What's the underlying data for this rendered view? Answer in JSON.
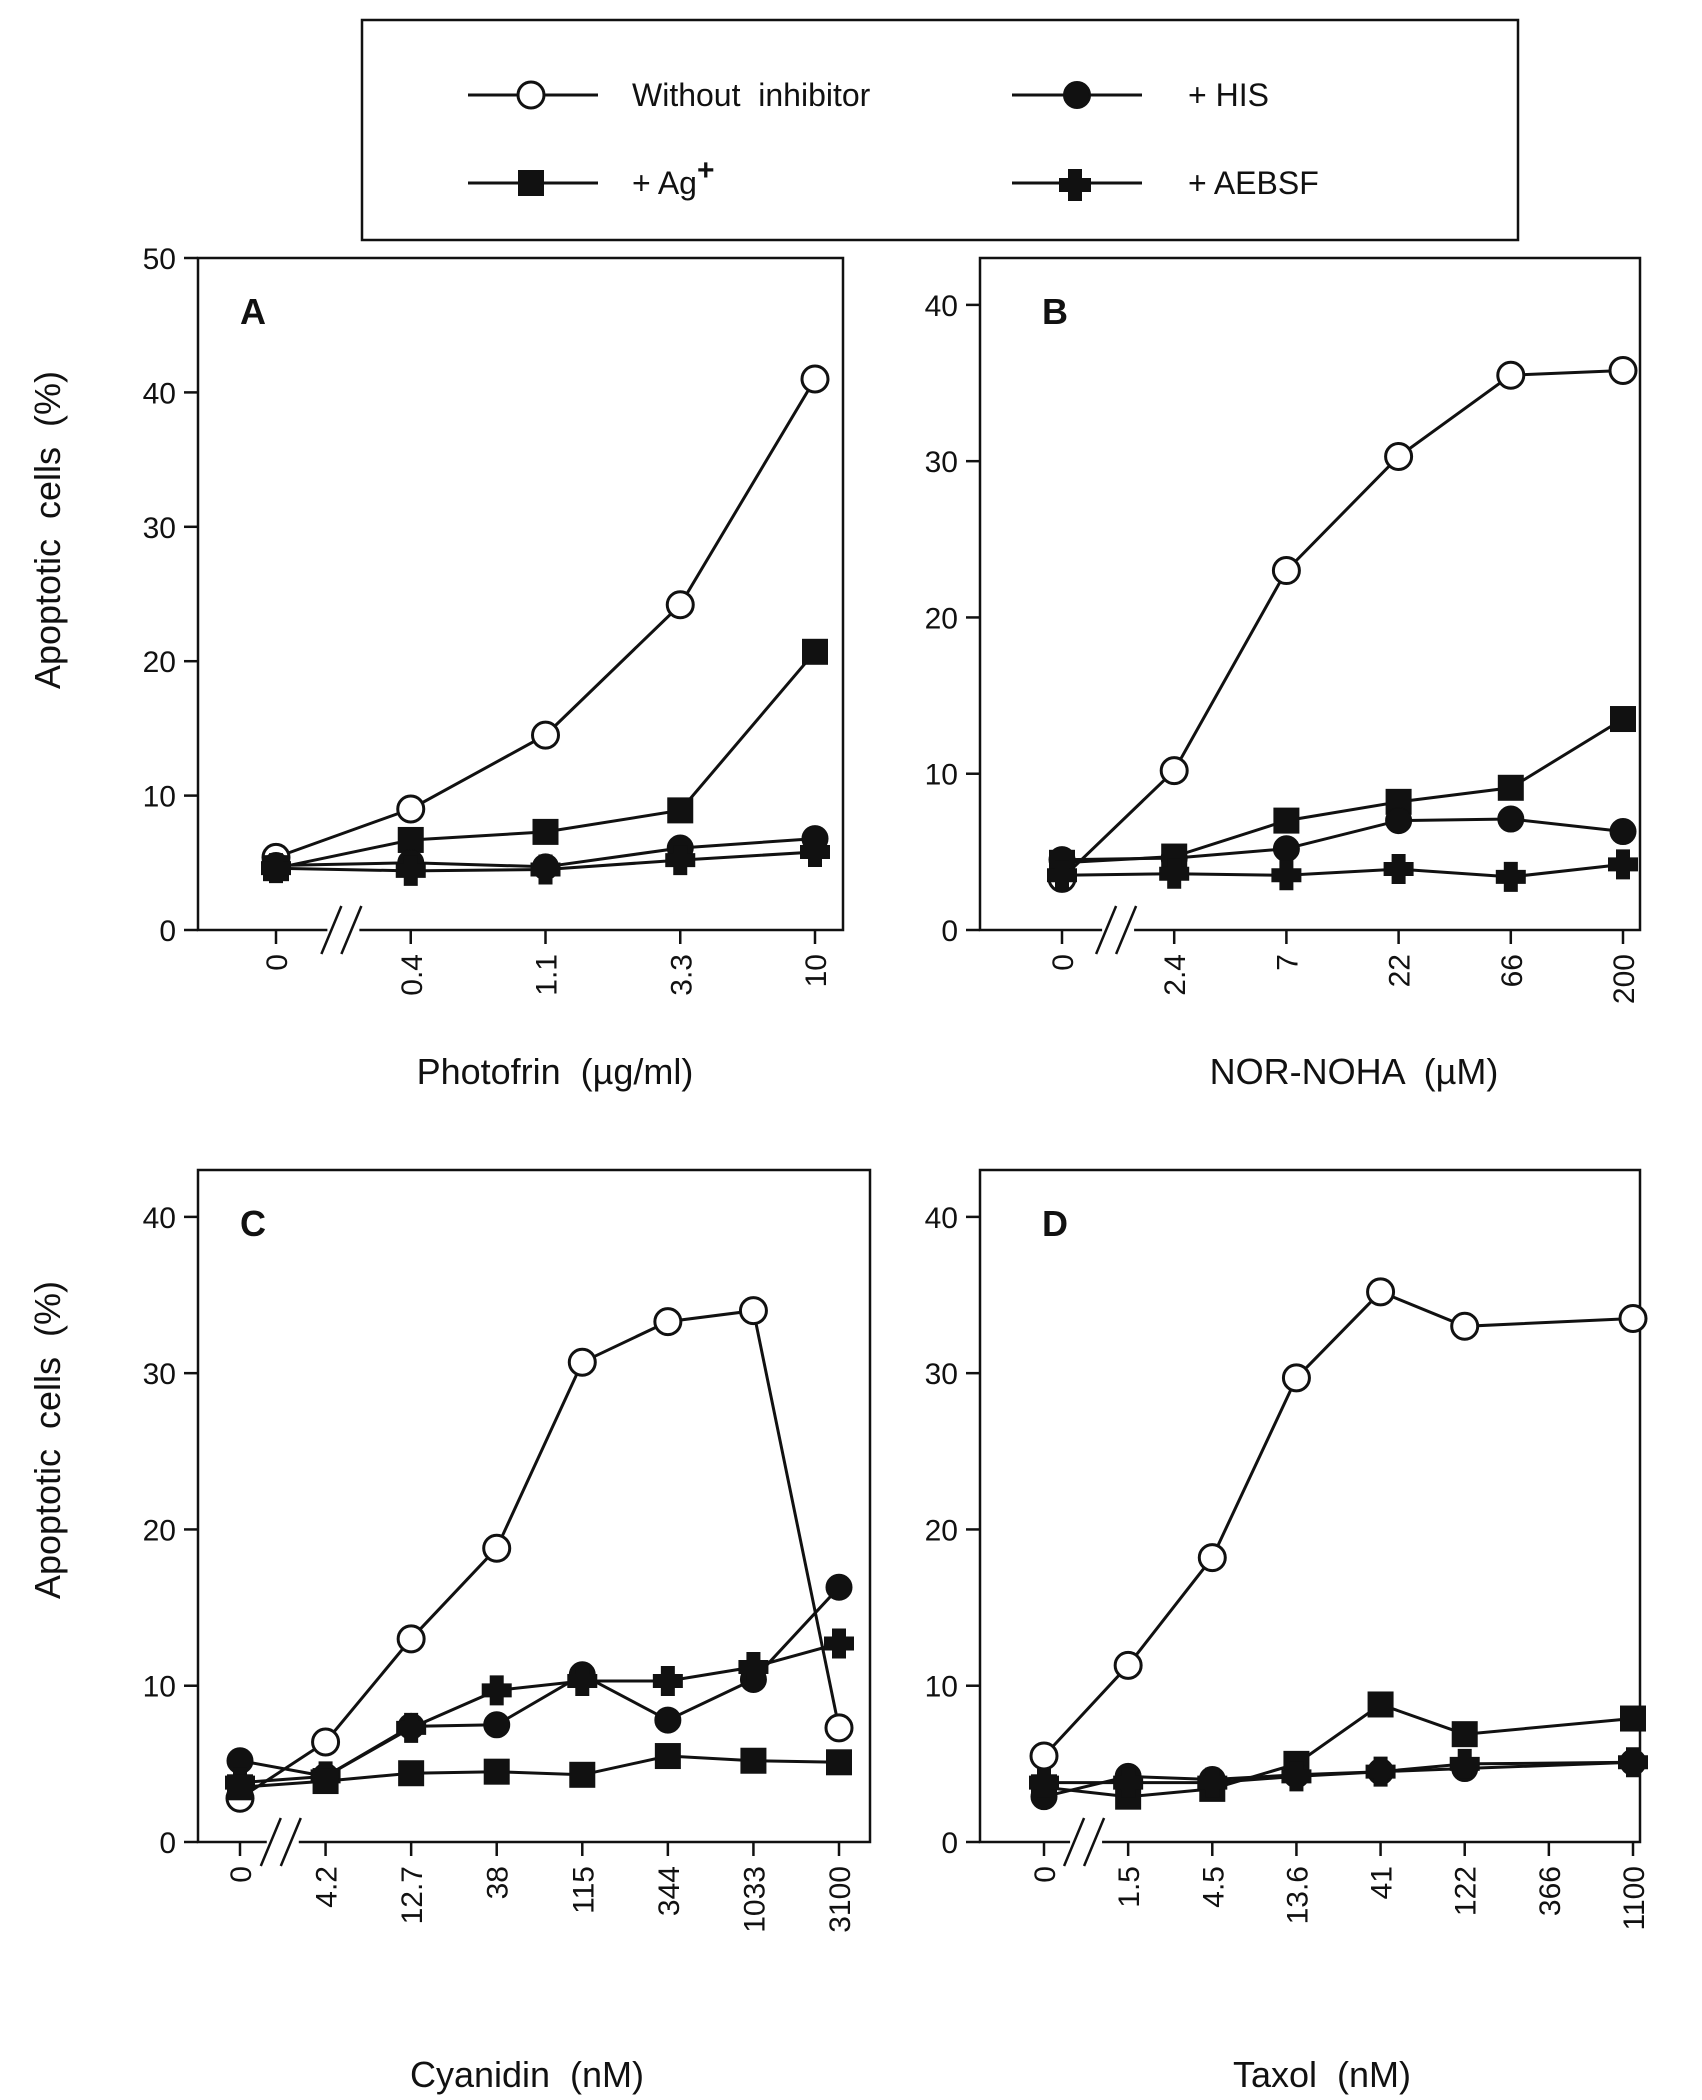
{
  "legend": {
    "without": "Without  inhibitor",
    "his": "+ HIS",
    "ag": "+ Ag",
    "ag_sup": "+",
    "aebsf": "+ AEBSF"
  },
  "chart_data": [
    {
      "type": "line",
      "panel": "A",
      "ylabel": "Apoptotic  cells  (%)",
      "xlabel": "Photofrin  (µg/ml)",
      "ylim": [
        0,
        50
      ],
      "yticks": [
        0,
        10,
        20,
        30,
        40,
        50
      ],
      "categories": [
        "0",
        "0.4",
        "1.1",
        "3.3",
        "10"
      ],
      "axis_break_after_index": 0,
      "series": [
        {
          "name": "Without inhibitor",
          "marker": "open-circle",
          "values": [
            5.4,
            9.0,
            14.5,
            24.2,
            41.0
          ]
        },
        {
          "name": "+ Ag+",
          "marker": "filled-square",
          "values": [
            4.6,
            6.7,
            7.3,
            8.9,
            20.7
          ]
        },
        {
          "name": "+ HIS",
          "marker": "filled-circle",
          "values": [
            4.8,
            5.0,
            4.7,
            6.1,
            6.8
          ]
        },
        {
          "name": "+ AEBSF",
          "marker": "plus",
          "values": [
            4.6,
            4.4,
            4.5,
            5.2,
            5.8
          ]
        }
      ]
    },
    {
      "type": "line",
      "panel": "B",
      "ylabel": "",
      "xlabel": "NOR-NOHA  (µM)",
      "ylim": [
        0,
        43
      ],
      "yticks": [
        0,
        10,
        20,
        30,
        40
      ],
      "categories": [
        "0",
        "2.4",
        "7",
        "22",
        "66",
        "200"
      ],
      "axis_break_after_index": 0,
      "series": [
        {
          "name": "Without inhibitor",
          "marker": "open-circle",
          "values": [
            3.3,
            10.2,
            23.0,
            30.3,
            35.5,
            35.8
          ]
        },
        {
          "name": "+ Ag+",
          "marker": "filled-square",
          "values": [
            4.3,
            4.7,
            7.0,
            8.2,
            9.1,
            13.5
          ]
        },
        {
          "name": "+ HIS",
          "marker": "filled-circle",
          "values": [
            4.5,
            4.6,
            5.2,
            7.0,
            7.1,
            6.3
          ]
        },
        {
          "name": "+ AEBSF",
          "marker": "plus",
          "values": [
            3.5,
            3.6,
            3.5,
            3.9,
            3.4,
            4.2
          ]
        }
      ]
    },
    {
      "type": "line",
      "panel": "C",
      "ylabel": "Apoptotic  cells  (%)",
      "xlabel": "Cyanidin  (nM)",
      "ylim": [
        0,
        43
      ],
      "yticks": [
        0,
        10,
        20,
        30,
        40
      ],
      "categories": [
        "0",
        "4.2",
        "12.7",
        "38",
        "115",
        "344",
        "1033",
        "3100"
      ],
      "axis_break_after_index": 0,
      "series": [
        {
          "name": "Without inhibitor",
          "marker": "open-circle",
          "values": [
            2.8,
            6.4,
            13.0,
            18.8,
            30.7,
            33.3,
            34.0,
            7.3
          ]
        },
        {
          "name": "+ HIS",
          "marker": "filled-circle",
          "values": [
            5.2,
            4.2,
            7.4,
            7.5,
            10.7,
            7.8,
            10.4,
            16.3
          ]
        },
        {
          "name": "+ AEBSF",
          "marker": "plus",
          "values": [
            3.8,
            4.2,
            7.3,
            9.7,
            10.3,
            10.3,
            11.2,
            12.7
          ]
        },
        {
          "name": "+ Ag+",
          "marker": "filled-square",
          "values": [
            3.5,
            3.9,
            4.4,
            4.5,
            4.3,
            5.5,
            5.2,
            5.1
          ]
        }
      ]
    },
    {
      "type": "line",
      "panel": "D",
      "ylabel": "",
      "xlabel": "Taxol  (nM)",
      "ylim": [
        0,
        43
      ],
      "yticks": [
        0,
        10,
        20,
        30,
        40
      ],
      "categories": [
        "0",
        "1.5",
        "4.5",
        "13.6",
        "41",
        "122",
        "366",
        "1100"
      ],
      "axis_break_after_index": 0,
      "series": [
        {
          "name": "Without inhibitor",
          "marker": "open-circle",
          "x": [
            0,
            1,
            2,
            3,
            4,
            5,
            7
          ],
          "values": [
            5.5,
            11.3,
            18.2,
            29.7,
            35.2,
            33.0,
            33.5
          ]
        },
        {
          "name": "+ Ag+",
          "marker": "filled-square",
          "x": [
            0,
            1,
            2,
            3,
            4,
            5,
            7
          ],
          "values": [
            3.5,
            2.9,
            3.4,
            5.0,
            8.8,
            6.9,
            7.9
          ]
        },
        {
          "name": "+ HIS",
          "marker": "filled-circle",
          "x": [
            0,
            1,
            2,
            3,
            4,
            5,
            7
          ],
          "values": [
            2.9,
            4.2,
            4.0,
            4.3,
            4.5,
            4.7,
            5.1
          ]
        },
        {
          "name": "+ AEBSF",
          "marker": "plus",
          "x": [
            0,
            1,
            2,
            3,
            4,
            5,
            7
          ],
          "values": [
            3.8,
            3.8,
            3.8,
            4.2,
            4.5,
            5.0,
            5.1
          ]
        }
      ]
    }
  ]
}
